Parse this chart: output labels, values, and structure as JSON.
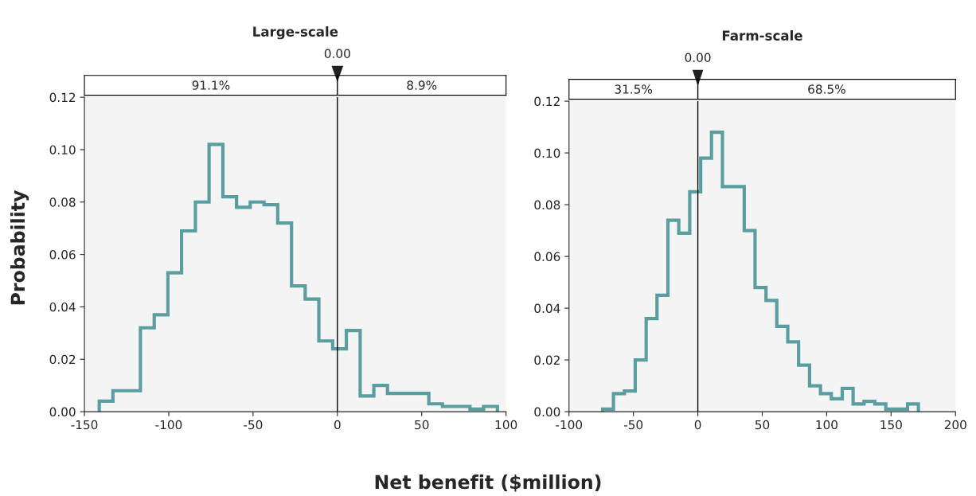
{
  "chart_data": [
    {
      "type": "histogram",
      "title": "Large-scale",
      "ylabel": "Probability",
      "xlabel": "Net benefit ($million)",
      "color": "#5b9ea0",
      "bins": [
        -141.2,
        -133.1,
        -124.9,
        -116.8,
        -108.6,
        -100.5,
        -92.4,
        -84.2,
        -76.1,
        -67.9,
        -59.8,
        -51.7,
        -43.5,
        -35.4,
        -27.2,
        -19.1,
        -11.0,
        -2.8,
        5.3,
        13.5,
        21.6,
        29.7,
        37.9,
        46.0,
        54.2,
        62.3,
        70.4,
        78.6,
        86.7,
        94.9
      ],
      "values": [
        0.004,
        0.008,
        0.008,
        0.032,
        0.037,
        0.053,
        0.069,
        0.08,
        0.102,
        0.082,
        0.078,
        0.08,
        0.079,
        0.072,
        0.048,
        0.043,
        0.027,
        0.024,
        0.031,
        0.006,
        0.01,
        0.007,
        0.007,
        0.007,
        0.003,
        0.002,
        0.002,
        0.001,
        0.002
      ],
      "xlim": [
        -150,
        100
      ],
      "xticks": [
        -150,
        -100,
        -50,
        0,
        50,
        100
      ],
      "ylim": [
        0,
        0.12
      ],
      "yticks": [
        {
          "value": 0,
          "label": "0.00"
        },
        {
          "value": 0.02,
          "label": "0.02"
        },
        {
          "value": 0.04,
          "label": "0.04"
        },
        {
          "value": 0.06,
          "label": "0.06"
        },
        {
          "value": 0.08,
          "label": "0.08"
        },
        {
          "value": 0.1,
          "label": "0.10"
        },
        {
          "value": 0.12,
          "label": "0.12"
        }
      ],
      "ref_lines": [
        {
          "axis": "x",
          "value": 0,
          "label": "0.00"
        }
      ],
      "annotations": [
        "91.1%",
        "8.9%"
      ]
    },
    {
      "type": "histogram",
      "title": "Farm-scale",
      "color": "#5b9ea0",
      "bins": [
        -73.9,
        -65.5,
        -57.0,
        -48.6,
        -40.1,
        -31.7,
        -23.2,
        -14.8,
        -6.3,
        2.2,
        10.6,
        19.1,
        27.5,
        36.0,
        44.4,
        52.9,
        61.3,
        69.8,
        78.2,
        86.7,
        95.2,
        103.6,
        112.1,
        120.5,
        129.0,
        137.4,
        145.9,
        154.3,
        162.8,
        171.2
      ],
      "values": [
        0.001,
        0.007,
        0.008,
        0.02,
        0.036,
        0.045,
        0.074,
        0.069,
        0.085,
        0.098,
        0.108,
        0.087,
        0.087,
        0.07,
        0.048,
        0.043,
        0.033,
        0.027,
        0.018,
        0.01,
        0.007,
        0.005,
        0.009,
        0.003,
        0.004,
        0.003,
        0.001,
        0.001,
        0.003
      ],
      "xlim": [
        -100,
        200
      ],
      "xticks": [
        -100,
        -50,
        0,
        50,
        100,
        150,
        200
      ],
      "ylim": [
        0,
        0.12
      ],
      "yticks": [
        {
          "value": 0,
          "label": "0.00"
        },
        {
          "value": 0.02,
          "label": "0.02"
        },
        {
          "value": 0.04,
          "label": "0.04"
        },
        {
          "value": 0.06,
          "label": "0.06"
        },
        {
          "value": 0.08,
          "label": "0.08"
        },
        {
          "value": 0.1,
          "label": "0.10"
        },
        {
          "value": 0.12,
          "label": "0.12"
        }
      ],
      "ref_lines": [
        {
          "axis": "x",
          "value": 0,
          "label": "0.00"
        }
      ],
      "annotations": [
        "31.5%",
        "68.5%"
      ]
    }
  ]
}
